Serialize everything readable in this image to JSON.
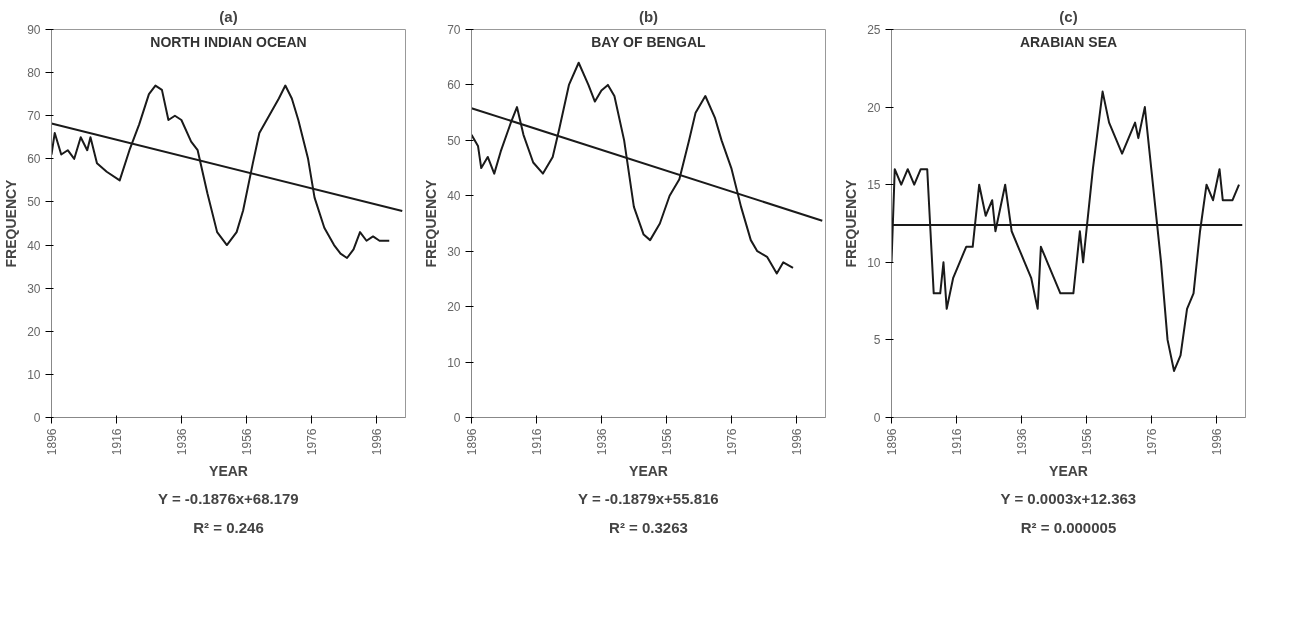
{
  "chart_data": [
    {
      "type": "line",
      "title": "(a)",
      "subtitle": "NORTH INDIAN OCEAN",
      "xlabel": "YEAR",
      "ylabel": "FREQUENCY",
      "xlim": [
        1896,
        2005
      ],
      "xticks": [
        1896,
        1916,
        1936,
        1956,
        1976,
        1996
      ],
      "ylim": [
        0,
        90
      ],
      "yticks": [
        0,
        10,
        20,
        30,
        40,
        50,
        60,
        70,
        80,
        90
      ],
      "grid": false,
      "marker": "none",
      "line_style": "solid",
      "series": [
        {
          "color": "#1a1a1a",
          "x": [
            1896,
            1897,
            1899,
            1901,
            1903,
            1905,
            1907,
            1908,
            1910,
            1913,
            1917,
            1920,
            1923,
            1926,
            1928,
            1930,
            1932,
            1934,
            1936,
            1939,
            1941,
            1944,
            1947,
            1950,
            1953,
            1955,
            1958,
            1960,
            1963,
            1966,
            1968,
            1970,
            1972,
            1975,
            1977,
            1980,
            1983,
            1985,
            1987,
            1989,
            1991,
            1993,
            1995,
            1997,
            2000
          ],
          "values": [
            61,
            66,
            61,
            62,
            60,
            65,
            62,
            65,
            59,
            57,
            55,
            62,
            68,
            75,
            77,
            76,
            69,
            70,
            69,
            64,
            62,
            52,
            43,
            40,
            43,
            48,
            59,
            66,
            70,
            74,
            77,
            74,
            69,
            60,
            51,
            44,
            40,
            38,
            37,
            39,
            43,
            41,
            42,
            41,
            41
          ]
        },
        {
          "color": "#1a1a1a",
          "x": [
            1896,
            2004
          ],
          "values": [
            68.2,
            47.9
          ]
        }
      ],
      "annotations": [
        "Y = -0.1876x+68.179",
        "R² = 0.246"
      ]
    },
    {
      "type": "line",
      "title": "(b)",
      "subtitle": "BAY OF BENGAL",
      "xlabel": "YEAR",
      "ylabel": "FREQUENCY",
      "xlim": [
        1896,
        2005
      ],
      "xticks": [
        1896,
        1916,
        1936,
        1956,
        1976,
        1996
      ],
      "ylim": [
        0,
        70
      ],
      "yticks": [
        0,
        10,
        20,
        30,
        40,
        50,
        60,
        70
      ],
      "grid": false,
      "marker": "none",
      "line_style": "solid",
      "series": [
        {
          "color": "#1a1a1a",
          "x": [
            1896,
            1898,
            1899,
            1901,
            1903,
            1905,
            1908,
            1910,
            1912,
            1915,
            1918,
            1921,
            1923,
            1926,
            1929,
            1932,
            1934,
            1936,
            1938,
            1940,
            1943,
            1946,
            1949,
            1951,
            1954,
            1957,
            1960,
            1963,
            1965,
            1968,
            1971,
            1973,
            1976,
            1979,
            1982,
            1984,
            1987,
            1990,
            1992,
            1995
          ],
          "values": [
            51,
            49,
            45,
            47,
            44,
            48,
            53,
            56,
            51,
            46,
            44,
            47,
            52,
            60,
            64,
            60,
            57,
            59,
            60,
            58,
            50,
            38,
            33,
            32,
            35,
            40,
            43,
            50,
            55,
            58,
            54,
            50,
            45,
            38,
            32,
            30,
            29,
            26,
            28,
            27
          ]
        },
        {
          "color": "#1a1a1a",
          "x": [
            1896,
            2004
          ],
          "values": [
            55.8,
            35.5
          ]
        }
      ],
      "annotations": [
        "Y = -0.1879x+55.816",
        "R² = 0.3263"
      ]
    },
    {
      "type": "line",
      "title": "(c)",
      "subtitle": "ARABIAN SEA",
      "xlabel": "YEAR",
      "ylabel": "FREQUENCY",
      "xlim": [
        1896,
        2005
      ],
      "xticks": [
        1896,
        1916,
        1936,
        1956,
        1976,
        1996
      ],
      "ylim": [
        0,
        25
      ],
      "yticks": [
        0,
        5,
        10,
        15,
        20,
        25
      ],
      "grid": false,
      "marker": "none",
      "line_style": "solid",
      "series": [
        {
          "color": "#1a1a1a",
          "x": [
            1896,
            1897,
            1899,
            1901,
            1903,
            1905,
            1907,
            1908,
            1909,
            1911,
            1912,
            1913,
            1915,
            1917,
            1919,
            1921,
            1923,
            1925,
            1927,
            1928,
            1930,
            1931,
            1933,
            1935,
            1937,
            1939,
            1941,
            1942,
            1944,
            1946,
            1948,
            1952,
            1954,
            1955,
            1958,
            1961,
            1963,
            1965,
            1967,
            1969,
            1971,
            1972,
            1974,
            1976,
            1979,
            1981,
            1983,
            1985,
            1987,
            1989,
            1991,
            1993,
            1995,
            1997,
            1998,
            2001,
            2003
          ],
          "values": [
            10,
            16,
            15,
            16,
            15,
            16,
            16,
            12,
            8,
            8,
            10,
            7,
            9,
            10,
            11,
            11,
            15,
            13,
            14,
            12,
            14,
            15,
            12,
            11,
            10,
            9,
            7,
            11,
            10,
            9,
            8,
            8,
            12,
            10,
            16,
            21,
            19,
            18,
            17,
            18,
            19,
            18,
            20,
            16,
            10,
            5,
            3,
            4,
            7,
            8,
            12,
            15,
            14,
            16,
            14,
            14,
            15
          ]
        },
        {
          "color": "#1a1a1a",
          "x": [
            1896,
            2004
          ],
          "values": [
            12.4,
            12.4
          ]
        }
      ],
      "annotations": [
        "Y = 0.0003x+12.363",
        "R² = 0.000005"
      ]
    }
  ]
}
